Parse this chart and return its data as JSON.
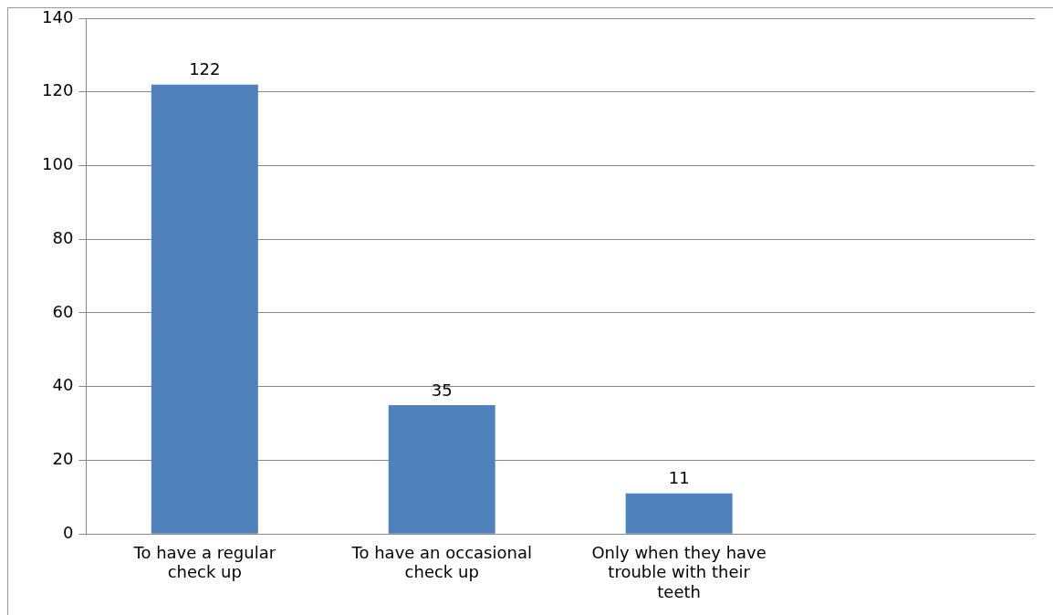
{
  "chart_data": {
    "type": "bar",
    "categories": [
      "To have a regular check up",
      "To have an occasional check up",
      "Only when they have trouble with their teeth",
      null
    ],
    "values": [
      122,
      35,
      11,
      null
    ],
    "color": "#4f81bd",
    "ylim": [
      0,
      140
    ],
    "yticks": [
      0,
      20,
      40,
      60,
      80,
      100,
      120,
      140
    ],
    "grid": "y",
    "legend": false,
    "data_labels": true
  }
}
